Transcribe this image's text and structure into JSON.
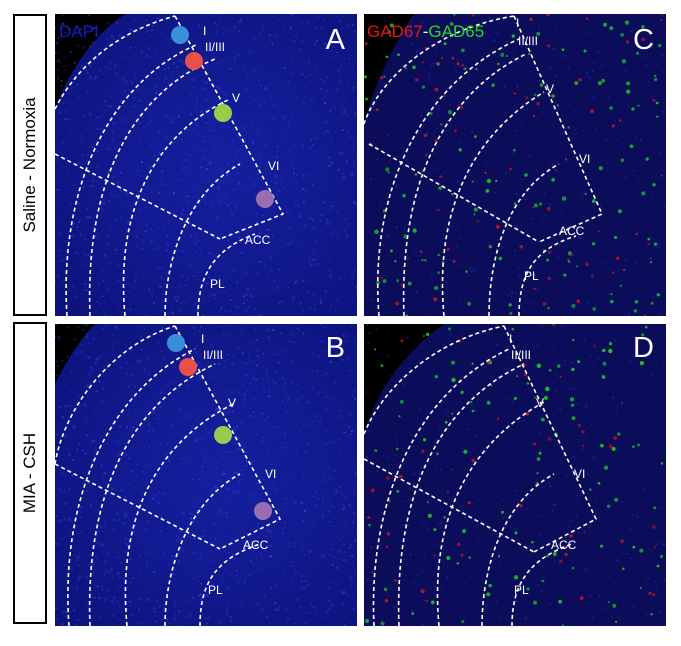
{
  "rows": [
    {
      "label": "Saline - Normoxia"
    },
    {
      "label": "MIA - CSH"
    }
  ],
  "panels": [
    {
      "letter": "A",
      "stain": "dapi"
    },
    {
      "letter": "C",
      "stain": "gad"
    },
    {
      "letter": "B",
      "stain": "dapi"
    },
    {
      "letter": "D",
      "stain": "gad"
    }
  ],
  "stains": {
    "dapi": {
      "label": "DAPI",
      "color": "#1a1ad8"
    },
    "gad67": {
      "label": "GAD67",
      "color": "#e81818"
    },
    "separator": "-",
    "gad65": {
      "label": "GAD65",
      "color": "#22dd22"
    }
  },
  "regions": {
    "layer_1": "I",
    "layer_2_3": "II/III",
    "layer_5": "V",
    "layer_6": "VI",
    "acc": "ACC",
    "pl": "PL"
  },
  "layer_markers": [
    {
      "name": "layer-1-marker",
      "color": "#3a8fd8"
    },
    {
      "name": "layer-2-3-marker",
      "color": "#e8504a"
    },
    {
      "name": "layer-5-marker",
      "color": "#98cc4c"
    },
    {
      "name": "layer-6-marker",
      "color": "#9a6cb0"
    }
  ],
  "colors": {
    "tissue_dapi": "#111a8a",
    "tissue_gad": "#0b0d5a",
    "background": "#000000",
    "outline": "#ffffff"
  }
}
